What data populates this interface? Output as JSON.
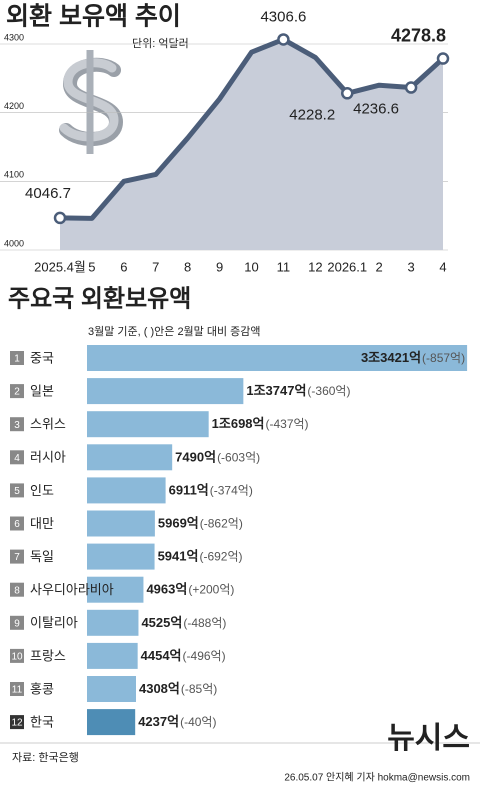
{
  "chart_data": [
    {
      "type": "line",
      "title": "외환 보유액 추이",
      "unit": "단위: 억달러",
      "categories": [
        "2025.4월",
        "5",
        "6",
        "7",
        "8",
        "9",
        "10",
        "11",
        "12",
        "2026.1",
        "2",
        "3",
        "4"
      ],
      "values": [
        4046.7,
        4046.0,
        4100.0,
        4110.0,
        4163.0,
        4220.0,
        4288.0,
        4306.6,
        4280.5,
        4228.2,
        4240.0,
        4236.6,
        4278.8
      ],
      "value_labels": [
        "4046.7",
        null,
        null,
        null,
        null,
        null,
        null,
        "4306.6",
        null,
        "4228.2",
        null,
        "4236.6",
        "4278.8"
      ],
      "ylim": [
        4000,
        4330
      ],
      "yticks": [
        4000,
        4100,
        4200,
        4300
      ],
      "grid": true,
      "color": "#4b5d79",
      "area_color": "#c8cdd9"
    },
    {
      "type": "hbar",
      "title": "주요국 외환보유액",
      "subtitle": "3월말 기준, ( )안은 2월말 대비 증감액",
      "ranks": [
        1,
        2,
        3,
        4,
        5,
        6,
        7,
        8,
        9,
        10,
        11,
        12
      ],
      "categories": [
        "중국",
        "일본",
        "스위스",
        "러시아",
        "인도",
        "대만",
        "독일",
        "사우디아라비아",
        "이탈리아",
        "프랑스",
        "홍콩",
        "한국"
      ],
      "values": [
        33421,
        13747,
        10698,
        7490,
        6911,
        5969,
        5941,
        4963,
        4525,
        4454,
        4308,
        4237
      ],
      "value_labels": [
        "3조3421억",
        "1조3747억",
        "1조698억",
        "7490억",
        "6911억",
        "5969억",
        "5941억",
        "4963억",
        "4525억",
        "4454억",
        "4308억",
        "4237억"
      ],
      "changes": [
        -857,
        -360,
        -437,
        -603,
        -374,
        -862,
        -692,
        200,
        -488,
        -496,
        -85,
        -40
      ],
      "change_labels": [
        "(-857억)",
        "(-360억)",
        "(-437억)",
        "(-603억)",
        "(-374억)",
        "(-862억)",
        "(-692억)",
        "(+200억)",
        "(-488억)",
        "(-496억)",
        "(-85억)",
        "(-40억)"
      ],
      "xlim": [
        0,
        33500
      ],
      "color": "#8bb9d9",
      "highlight_index": 11,
      "highlight_color": "#4e8db5"
    }
  ],
  "source": "자료: 한국은행",
  "credit": "26.05.07 안지혜 기자 hokma@newsis.com",
  "logo": "뉴시스"
}
